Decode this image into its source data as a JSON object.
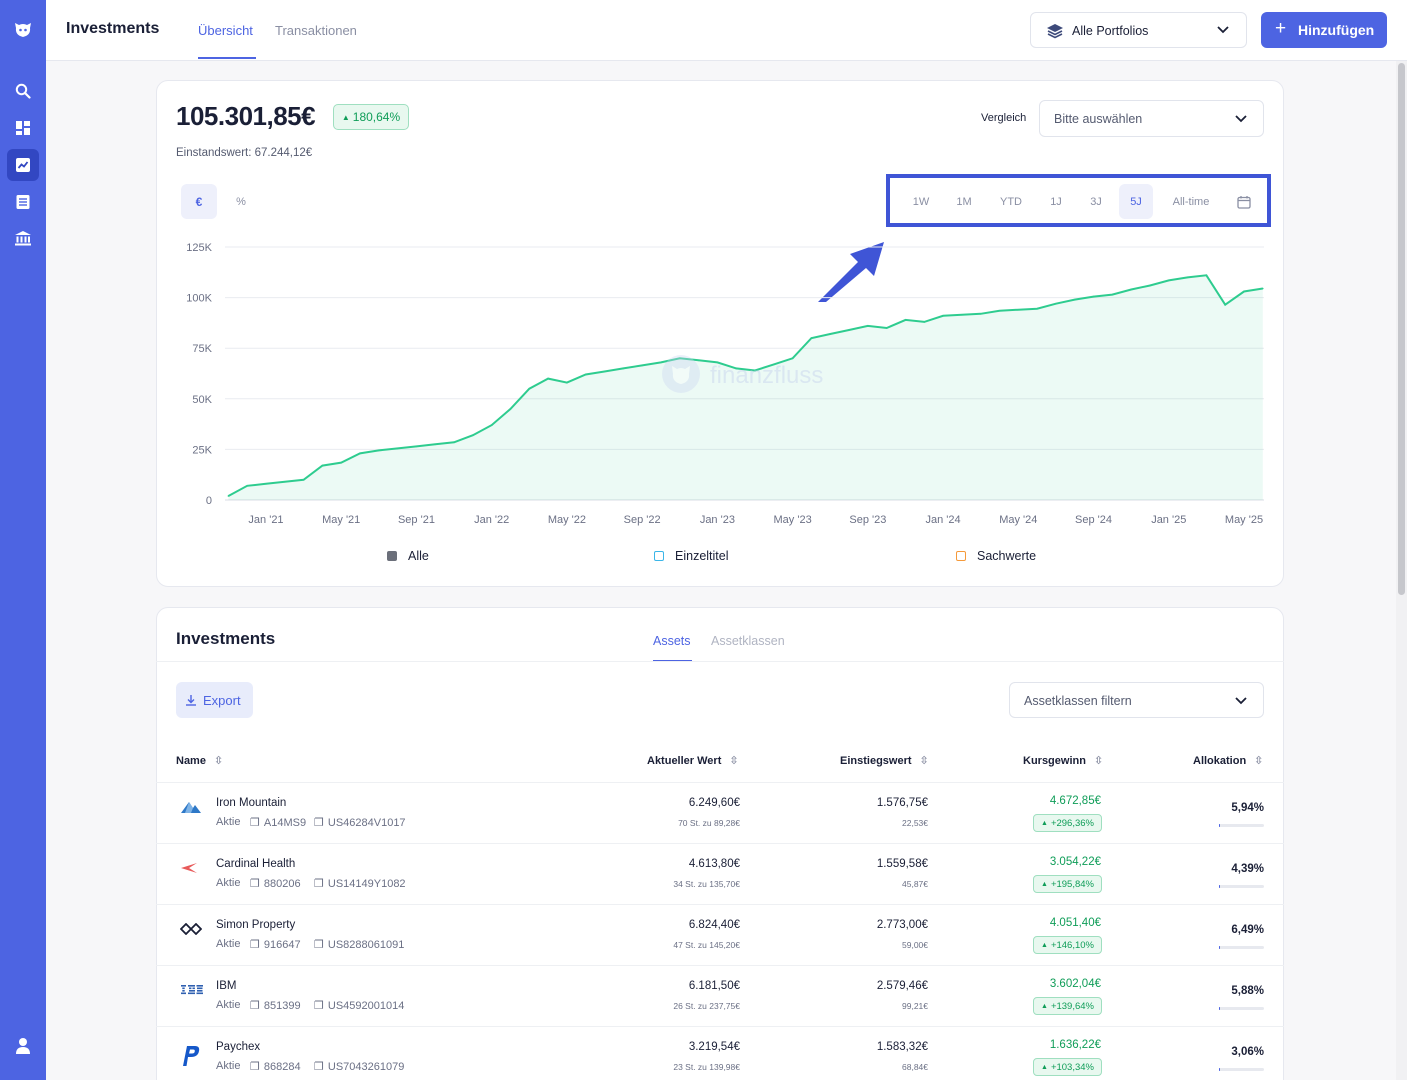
{
  "nav": {
    "icons": [
      "logo-icon",
      "search-icon",
      "dashboard-icon",
      "investments-icon",
      "transactions-icon",
      "bank-icon",
      "user-icon"
    ]
  },
  "header": {
    "title": "Investments",
    "tabs": [
      "Übersicht",
      "Transaktionen"
    ],
    "portfolio_select": "Alle Portfolios",
    "add_label": "Hinzufügen"
  },
  "overview": {
    "total_value": "105.301,85€",
    "change_pct": "180,64%",
    "cost_basis": "Einstandswert: 67.244,12€",
    "compare_label": "Vergleich",
    "compare_placeholder": "Bitte auswählen",
    "unit_toggle": [
      "€",
      "%"
    ],
    "ranges": [
      "1W",
      "1M",
      "YTD",
      "1J",
      "3J",
      "5J",
      "All-time"
    ],
    "active_range": "5J",
    "watermark": "finanzfluss",
    "legend": [
      {
        "label": "Alle",
        "color": "#6b6f7a"
      },
      {
        "label": "Einzeltitel",
        "color": "#3bb6e8"
      },
      {
        "label": "Sachwerte",
        "color": "#f59a3b"
      }
    ]
  },
  "chart_data": {
    "type": "area",
    "title": "",
    "xlabel": "",
    "ylabel": "",
    "ylim": [
      0,
      125000
    ],
    "yticks": [
      0,
      25000,
      50000,
      75000,
      100000,
      125000
    ],
    "ytick_labels": [
      "0",
      "25K",
      "50K",
      "75K",
      "100K",
      "125K"
    ],
    "xtick_labels": [
      "Jan '21",
      "May '21",
      "Sep '21",
      "Jan '22",
      "May '22",
      "Sep '22",
      "Jan '23",
      "May '23",
      "Sep '23",
      "Jan '24",
      "May '24",
      "Sep '24",
      "Jan '25",
      "May '25"
    ],
    "grid": true,
    "series": [
      {
        "name": "Alle",
        "color": "#2ecc8f",
        "x": [
          "2020-11",
          "2020-12",
          "2021-01",
          "2021-02",
          "2021-03",
          "2021-04",
          "2021-05",
          "2021-06",
          "2021-07",
          "2021-08",
          "2021-09",
          "2021-10",
          "2021-11",
          "2021-12",
          "2022-01",
          "2022-02",
          "2022-03",
          "2022-04",
          "2022-05",
          "2022-06",
          "2022-07",
          "2022-08",
          "2022-09",
          "2022-10",
          "2022-11",
          "2022-12",
          "2023-01",
          "2023-02",
          "2023-03",
          "2023-04",
          "2023-05",
          "2023-06",
          "2023-07",
          "2023-08",
          "2023-09",
          "2023-10",
          "2023-11",
          "2023-12",
          "2024-01",
          "2024-02",
          "2024-03",
          "2024-04",
          "2024-05",
          "2024-06",
          "2024-07",
          "2024-08",
          "2024-09",
          "2024-10",
          "2024-11",
          "2024-12",
          "2025-01",
          "2025-02",
          "2025-03",
          "2025-04",
          "2025-05",
          "2025-06"
        ],
        "values": [
          2000,
          7000,
          8000,
          9000,
          10000,
          17000,
          18500,
          23000,
          24500,
          25500,
          26500,
          27500,
          28500,
          32000,
          37000,
          45000,
          55000,
          60000,
          58000,
          62000,
          63500,
          65000,
          66500,
          68000,
          70000,
          69000,
          68000,
          65000,
          64000,
          67000,
          70000,
          80000,
          82000,
          84000,
          86000,
          85000,
          89000,
          88000,
          91000,
          91500,
          92000,
          93500,
          94000,
          94500,
          97000,
          99000,
          100500,
          101500,
          104000,
          106000,
          108500,
          110000,
          111000,
          96500,
          103000,
          104500
        ]
      }
    ]
  },
  "investments": {
    "title": "Investments",
    "tabs": [
      "Assets",
      "Assetklassen"
    ],
    "export_label": "Export",
    "filter_placeholder": "Assetklassen filtern",
    "columns": [
      "Name",
      "Aktueller Wert",
      "Einstiegswert",
      "Kursgewinn",
      "Allokation"
    ],
    "rows": [
      {
        "name": "Iron Mountain",
        "type": "Aktie",
        "wkn": "A14MS9",
        "isin": "US46284V1017",
        "value": "6.249,60€",
        "value_sub": "70 St. zu 89,28€",
        "entry": "1.576,75€",
        "entry_sub": "22,53€",
        "gain": "4.672,85€",
        "gain_pct": "+296,36%",
        "alloc": "5,94%",
        "alloc_pct": 5.94,
        "logo": "iron-mountain-logo"
      },
      {
        "name": "Cardinal Health",
        "type": "Aktie",
        "wkn": "880206",
        "isin": "US14149Y1082",
        "value": "4.613,80€",
        "value_sub": "34 St. zu 135,70€",
        "entry": "1.559,58€",
        "entry_sub": "45,87€",
        "gain": "3.054,22€",
        "gain_pct": "+195,84%",
        "alloc": "4,39%",
        "alloc_pct": 4.39,
        "logo": "cardinal-health-logo"
      },
      {
        "name": "Simon Property",
        "type": "Aktie",
        "wkn": "916647",
        "isin": "US8288061091",
        "value": "6.824,40€",
        "value_sub": "47 St. zu 145,20€",
        "entry": "2.773,00€",
        "entry_sub": "59,00€",
        "gain": "4.051,40€",
        "gain_pct": "+146,10%",
        "alloc": "6,49%",
        "alloc_pct": 6.49,
        "logo": "simon-property-logo"
      },
      {
        "name": "IBM",
        "type": "Aktie",
        "wkn": "851399",
        "isin": "US4592001014",
        "value": "6.181,50€",
        "value_sub": "26 St. zu 237,75€",
        "entry": "2.579,46€",
        "entry_sub": "99,21€",
        "gain": "3.602,04€",
        "gain_pct": "+139,64%",
        "alloc": "5,88%",
        "alloc_pct": 5.88,
        "logo": "ibm-logo"
      },
      {
        "name": "Paychex",
        "type": "Aktie",
        "wkn": "868284",
        "isin": "US7043261079",
        "value": "3.219,54€",
        "value_sub": "23 St. zu 139,98€",
        "entry": "1.583,32€",
        "entry_sub": "68,84€",
        "gain": "1.636,22€",
        "gain_pct": "+103,34%",
        "alloc": "3,06%",
        "alloc_pct": 3.06,
        "logo": "paychex-logo"
      }
    ]
  },
  "colors": {
    "accent": "#4d64e2",
    "positive": "#0f9d58",
    "line": "#2ecc8f",
    "highlight": "#3f55d6"
  }
}
